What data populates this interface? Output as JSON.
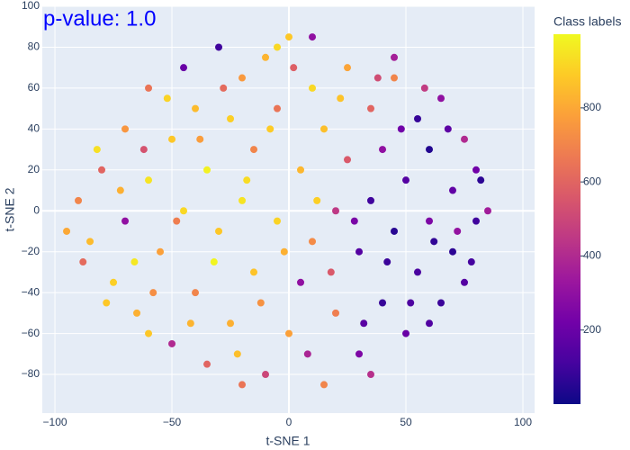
{
  "chart_data": {
    "type": "scatter",
    "annotation": "p-value: 1.0",
    "x_label": "t-SNE 1",
    "y_label": "t-SNE 2",
    "colorbar_title": "Class labels",
    "colorscale": [
      "#0d0887",
      "#46039f",
      "#7201a8",
      "#9c179e",
      "#bd3786",
      "#d8576b",
      "#ed7953",
      "#fb9f3a",
      "#fdca26",
      "#f0f921"
    ],
    "clim": [
      0,
      999
    ],
    "cticks": [
      200,
      400,
      600,
      800
    ],
    "xlim": [
      -105.4,
      105
    ],
    "ylim": [
      -98.9,
      100
    ],
    "xticks": [
      {
        "value": -100,
        "label": "−100"
      },
      {
        "value": -50,
        "label": "−50"
      },
      0,
      50,
      100
    ],
    "yticks": [
      {
        "value": -80,
        "label": "−80"
      },
      {
        "value": -60,
        "label": "−60"
      },
      {
        "value": -40,
        "label": "−40"
      },
      {
        "value": -20,
        "label": "−20"
      },
      0,
      20,
      40,
      60,
      80,
      100
    ],
    "grid": true,
    "series": [
      {
        "x": [
          -90,
          -85,
          -80,
          -75,
          -70,
          -70,
          -65,
          -60,
          -60,
          -55,
          -50,
          -50,
          -45,
          -45,
          -40,
          -40,
          -35,
          -35,
          -30,
          -30,
          -25,
          -25,
          -20,
          -20,
          -15,
          -15,
          -10,
          -10,
          -5,
          -5,
          0,
          0,
          5,
          5,
          10,
          10,
          15,
          15,
          20,
          20,
          25,
          25,
          30,
          30,
          35,
          35,
          40,
          40,
          45,
          45,
          50,
          50,
          55,
          55,
          60,
          60,
          65,
          65,
          70,
          70,
          75,
          75,
          80,
          80,
          85,
          -88,
          -82,
          -78,
          -72,
          -66,
          -62,
          -58,
          -52,
          -48,
          -42,
          -38,
          -32,
          -28,
          -22,
          -18,
          -12,
          -8,
          -2,
          2,
          8,
          12,
          18,
          22,
          28,
          32,
          38,
          42,
          48,
          52,
          58,
          62,
          68,
          72,
          78,
          82,
          -95,
          -20,
          10,
          60,
          -60,
          35,
          -5,
          45
        ],
        "values": [
          5,
          -15,
          20,
          -35,
          40,
          -5,
          -50,
          60,
          15,
          -20,
          35,
          -65,
          70,
          0,
          -40,
          50,
          20,
          -75,
          80,
          -10,
          45,
          -55,
          65,
          5,
          -30,
          30,
          -80,
          75,
          -5,
          50,
          85,
          -60,
          20,
          -35,
          60,
          -15,
          -85,
          40,
          0,
          -50,
          70,
          25,
          -70,
          -20,
          50,
          5,
          -45,
          30,
          65,
          -10,
          -60,
          15,
          45,
          -30,
          -5,
          30,
          55,
          -45,
          10,
          -20,
          35,
          -35,
          -5,
          20,
          0,
          -25,
          30,
          -45,
          10,
          -25,
          30,
          -40,
          55,
          -5,
          -55,
          35,
          -25,
          60,
          -70,
          15,
          -45,
          40,
          -20,
          70,
          -70,
          5,
          -30,
          55,
          -5,
          -55,
          65,
          -25,
          40,
          -45,
          60,
          -15,
          40,
          -10,
          -25,
          15,
          -10,
          -85,
          85,
          -55,
          -60,
          -80,
          80,
          75
        ],
        "color_values": [
          700,
          850,
          600,
          900,
          750,
          300,
          820,
          650,
          950,
          780,
          880,
          400,
          200,
          920,
          700,
          850,
          980,
          600,
          100,
          880,
          900,
          820,
          760,
          950,
          870,
          700,
          500,
          830,
          910,
          650,
          880,
          780,
          840,
          300,
          920,
          720,
          700,
          860,
          450,
          680,
          790,
          560,
          250,
          150,
          600,
          100,
          80,
          300,
          700,
          50,
          200,
          150,
          80,
          120,
          250,
          40,
          300,
          90,
          180,
          60,
          400,
          150,
          100,
          220,
          350,
          620,
          940,
          880,
          820,
          960,
          540,
          730,
          910,
          680,
          830,
          770,
          990,
          620,
          860,
          930,
          740,
          890,
          820,
          580,
          380,
          900,
          560,
          870,
          240,
          160,
          520,
          90,
          220,
          130,
          460,
          70,
          170,
          310,
          110,
          60,
          800,
          650,
          300,
          140,
          880,
          420,
          920,
          360
        ]
      }
    ]
  }
}
